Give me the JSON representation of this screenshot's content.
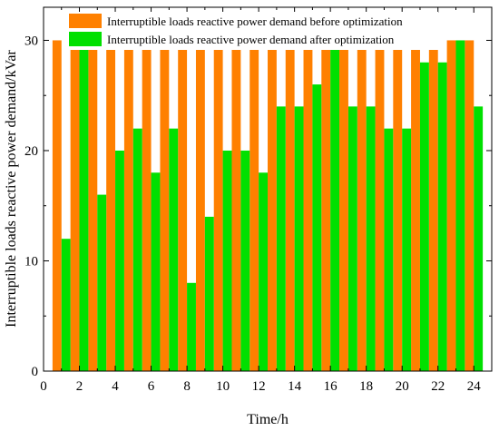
{
  "chart_data": {
    "type": "bar",
    "title": "",
    "xlabel": "Time/h",
    "ylabel": "Interruptible loads reactive power demand/kVar",
    "x": [
      1,
      2,
      3,
      4,
      5,
      6,
      7,
      8,
      9,
      10,
      11,
      12,
      13,
      14,
      15,
      16,
      17,
      18,
      19,
      20,
      21,
      22,
      23,
      24
    ],
    "xlim": [
      0,
      25
    ],
    "ylim": [
      0,
      33
    ],
    "xticks": [
      0,
      2,
      4,
      6,
      8,
      10,
      12,
      14,
      16,
      18,
      20,
      22,
      24
    ],
    "yticks": [
      0,
      10,
      20,
      30
    ],
    "grid": false,
    "legend_position": "top-center",
    "series": [
      {
        "name": "Interruptible loads reactive power demand before optimization",
        "color": "#ff8000",
        "values": [
          30,
          30,
          30,
          30,
          30,
          30,
          30,
          30,
          30,
          30,
          30,
          30,
          30,
          30,
          30,
          30,
          30,
          30,
          30,
          30,
          30,
          30,
          30,
          30
        ]
      },
      {
        "name": "Interruptible loads reactive power demand after optimization",
        "color": "#00e000",
        "values": [
          12,
          30,
          16,
          20,
          22,
          18,
          22,
          8,
          14,
          20,
          20,
          18,
          24,
          24,
          26,
          30,
          24,
          24,
          22,
          22,
          28,
          28,
          30,
          24
        ]
      }
    ]
  }
}
